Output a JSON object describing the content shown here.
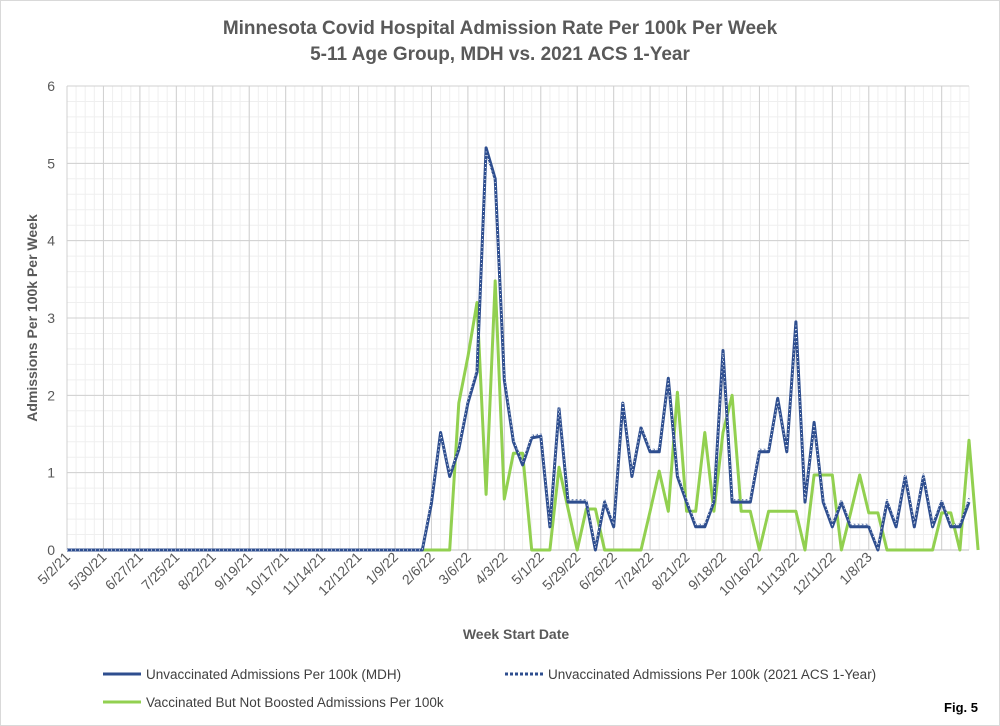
{
  "chart_data": {
    "type": "line",
    "title": "Minnesota Covid Hospital Admission Rate Per 100k Per Week",
    "subtitle": "5-11 Age Group, MDH vs. 2021 ACS 1-Year",
    "xlabel": "Week Start Date",
    "ylabel": "Admissions Per 100k Per Week",
    "ylim": [
      0,
      6
    ],
    "yticks": [
      0,
      1,
      2,
      3,
      4,
      5,
      6
    ],
    "grid": true,
    "legend_position": "bottom",
    "x_start": "5/2/21",
    "x_tick_labels": [
      "5/2/21",
      "5/30/21",
      "6/27/21",
      "7/25/21",
      "8/22/21",
      "9/19/21",
      "10/17/21",
      "11/14/21",
      "12/12/21",
      "1/9/22",
      "2/6/22",
      "3/6/22",
      "4/3/22",
      "5/1/22",
      "5/29/22",
      "6/26/22",
      "7/24/22",
      "8/21/22",
      "9/18/22",
      "10/16/22",
      "11/13/22",
      "12/11/22",
      "1/8/23"
    ],
    "series": [
      {
        "name": "Unvaccinated Admissions Per 100k (MDH)",
        "color": "#2e4e8f",
        "style": "solid",
        "values": [
          0,
          0,
          0,
          0,
          0,
          0,
          0,
          0,
          0,
          0,
          0,
          0,
          0,
          0,
          0,
          0,
          0,
          0,
          0,
          0,
          0,
          0,
          0,
          0,
          0,
          0,
          0,
          0,
          0,
          0,
          0,
          0,
          0,
          0,
          0,
          0,
          0,
          0,
          0,
          0,
          0.6,
          1.52,
          0.95,
          1.3,
          1.9,
          2.3,
          5.2,
          4.8,
          2.2,
          1.4,
          1.1,
          1.45,
          1.47,
          0.3,
          1.83,
          0.62,
          0.62,
          0.62,
          0,
          0.62,
          0.3,
          1.9,
          0.95,
          1.58,
          1.27,
          1.27,
          2.22,
          0.95,
          0.62,
          0.3,
          0.3,
          0.62,
          2.58,
          0.62,
          0.62,
          0.62,
          1.27,
          1.27,
          1.96,
          1.27,
          2.95,
          0.62,
          1.65,
          0.62,
          0.3,
          0.62,
          0.3,
          0.3,
          0.3,
          0,
          0.62,
          0.3,
          0.95,
          0.3,
          0.95,
          0.3,
          0.62,
          0.3,
          0.3,
          0.62
        ]
      },
      {
        "name": "Unvaccinated Admissions Per 100k (2021 ACS 1-Year)",
        "color": "#2e4e8f",
        "style": "dotted",
        "values": [
          0,
          0,
          0,
          0,
          0,
          0,
          0,
          0,
          0,
          0,
          0,
          0,
          0,
          0,
          0,
          0,
          0,
          0,
          0,
          0,
          0,
          0,
          0,
          0,
          0,
          0,
          0,
          0,
          0,
          0,
          0,
          0,
          0,
          0,
          0,
          0,
          0,
          0,
          0,
          0,
          0.65,
          1.5,
          0.98,
          1.32,
          1.93,
          2.35,
          5.15,
          4.75,
          2.25,
          1.42,
          1.13,
          1.48,
          1.5,
          0.32,
          1.85,
          0.65,
          0.65,
          0.65,
          0.03,
          0.65,
          0.33,
          1.92,
          0.98,
          1.6,
          1.3,
          1.3,
          2.2,
          0.98,
          0.65,
          0.33,
          0.33,
          0.65,
          2.55,
          0.65,
          0.65,
          0.65,
          1.3,
          1.3,
          1.93,
          1.3,
          2.9,
          0.65,
          1.62,
          0.65,
          0.33,
          0.65,
          0.33,
          0.33,
          0.33,
          0.03,
          0.65,
          0.33,
          0.98,
          0.33,
          0.98,
          0.33,
          0.65,
          0.33,
          0.33,
          0.67
        ]
      },
      {
        "name": "Vaccinated But Not Boosted Admissions Per 100k",
        "color": "#92d050",
        "style": "solid",
        "values": [
          0,
          0,
          0,
          0,
          0,
          0,
          0,
          0,
          0,
          0,
          0,
          0,
          0,
          0,
          0,
          0,
          0,
          0,
          0,
          0,
          0,
          0,
          0,
          0,
          0,
          0,
          0,
          0,
          0,
          0,
          0,
          0,
          0,
          0,
          0,
          0,
          0,
          0,
          0,
          0,
          0,
          0,
          0,
          1.9,
          2.5,
          3.2,
          0.72,
          3.48,
          0.66,
          1.25,
          1.25,
          0,
          0,
          0,
          1.07,
          0.53,
          0,
          0.53,
          0.53,
          0,
          0,
          0,
          0,
          0,
          0.5,
          1.02,
          0.5,
          2.04,
          0.5,
          0.5,
          1.52,
          0.5,
          1.52,
          2.0,
          0.5,
          0.5,
          0,
          0.5,
          0.5,
          0.5,
          0.5,
          0,
          0.97,
          0.97,
          0.97,
          0,
          0.48,
          0.97,
          0.48,
          0.48,
          0,
          0,
          0,
          0,
          0,
          0,
          0.48,
          0.48,
          0,
          1.42,
          0
        ]
      }
    ]
  },
  "legend": {
    "items": [
      {
        "label": "Unvaccinated Admissions Per 100k (MDH)"
      },
      {
        "label": "Unvaccinated Admissions Per 100k (2021 ACS 1-Year)"
      },
      {
        "label": "Vaccinated But Not Boosted Admissions Per 100k"
      }
    ]
  },
  "figure_label": "Fig. 5"
}
